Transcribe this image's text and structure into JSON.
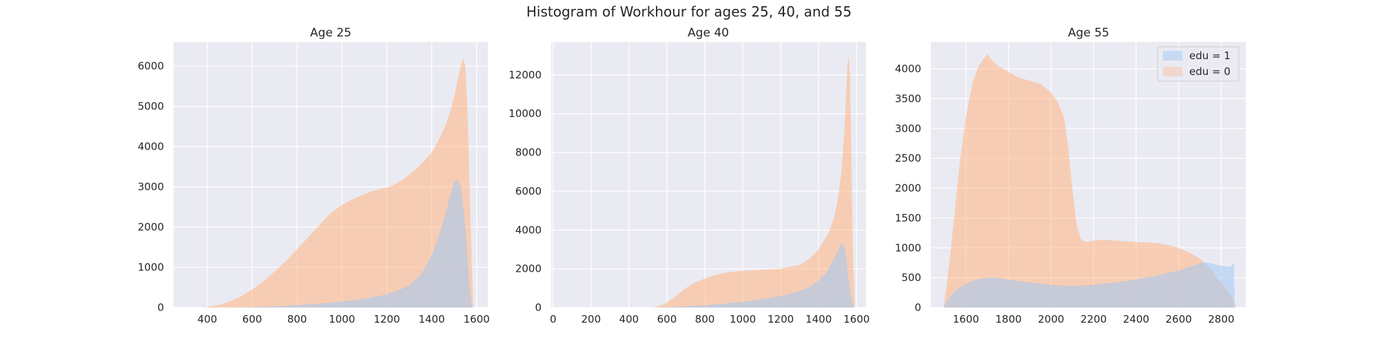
{
  "figure": {
    "title": "Histogram of Workhour for ages 25, 40, and 55"
  },
  "colors": {
    "edu1": "#a1c9f4",
    "edu0": "#ffb482",
    "panel_bg": "#eaeaf2",
    "grid": "#ffffff",
    "text": "#262626"
  },
  "chart_data": [
    {
      "type": "area",
      "title": "Age 25",
      "xlabel": "",
      "ylabel": "",
      "xlim": [
        250,
        1650
      ],
      "ylim": [
        0,
        6600
      ],
      "xticks": [
        400,
        600,
        800,
        1000,
        1200,
        1400,
        1600
      ],
      "yticks": [
        0,
        1000,
        2000,
        3000,
        4000,
        5000,
        6000
      ],
      "grid": true,
      "series": [
        {
          "key": "edu0",
          "x": [
            380,
            450,
            500,
            550,
            600,
            650,
            700,
            750,
            800,
            850,
            900,
            950,
            1000,
            1050,
            1100,
            1150,
            1200,
            1250,
            1300,
            1350,
            1400,
            1430,
            1460,
            1490,
            1510,
            1525,
            1540,
            1550,
            1560,
            1570,
            1580,
            1585
          ],
          "y": [
            0,
            60,
            150,
            280,
            450,
            650,
            900,
            1150,
            1450,
            1750,
            2050,
            2350,
            2550,
            2700,
            2820,
            2920,
            2980,
            3100,
            3300,
            3550,
            3850,
            4150,
            4500,
            5000,
            5500,
            5900,
            6200,
            6000,
            4800,
            2800,
            800,
            0
          ]
        },
        {
          "key": "edu1",
          "x": [
            500,
            600,
            700,
            800,
            900,
            1000,
            1100,
            1200,
            1250,
            1300,
            1350,
            1400,
            1430,
            1460,
            1480,
            1500,
            1515,
            1530,
            1545,
            1560,
            1570,
            1580
          ],
          "y": [
            0,
            10,
            30,
            60,
            100,
            150,
            220,
            330,
            420,
            550,
            800,
            1300,
            1750,
            2300,
            2750,
            3100,
            3200,
            3000,
            2300,
            1200,
            400,
            0
          ]
        }
      ]
    },
    {
      "type": "area",
      "title": "Age 40",
      "xlabel": "",
      "ylabel": "",
      "xlim": [
        -10,
        1650
      ],
      "ylim": [
        0,
        13700
      ],
      "xticks": [
        0,
        200,
        400,
        600,
        800,
        1000,
        1200,
        1400,
        1600
      ],
      "yticks": [
        0,
        2000,
        4000,
        6000,
        8000,
        10000,
        12000
      ],
      "grid": true,
      "series": [
        {
          "key": "edu0",
          "x": [
            530,
            580,
            620,
            660,
            700,
            750,
            800,
            850,
            900,
            950,
            1000,
            1100,
            1200,
            1300,
            1350,
            1400,
            1450,
            1480,
            1500,
            1520,
            1535,
            1545,
            1552,
            1558,
            1565,
            1572,
            1580,
            1590
          ],
          "y": [
            0,
            150,
            400,
            700,
            1000,
            1300,
            1500,
            1650,
            1780,
            1850,
            1900,
            1950,
            2000,
            2200,
            2500,
            3000,
            3800,
            4600,
            5500,
            7000,
            9000,
            11000,
            12500,
            13000,
            12000,
            8000,
            3000,
            0
          ]
        },
        {
          "key": "edu1",
          "x": [
            550,
            600,
            700,
            800,
            900,
            1000,
            1100,
            1200,
            1300,
            1350,
            1400,
            1440,
            1470,
            1500,
            1515,
            1525,
            1535,
            1545,
            1555,
            1565,
            1575,
            1585
          ],
          "y": [
            0,
            20,
            60,
            120,
            200,
            300,
            430,
            600,
            850,
            1050,
            1400,
            1800,
            2300,
            2900,
            3250,
            3300,
            3100,
            2600,
            1700,
            900,
            300,
            0
          ]
        }
      ]
    },
    {
      "type": "area",
      "title": "Age 55",
      "xlabel": "",
      "ylabel": "",
      "xlim": [
        1435,
        2915
      ],
      "ylim": [
        0,
        4450
      ],
      "xticks": [
        1600,
        1800,
        2000,
        2200,
        2400,
        2600,
        2800
      ],
      "yticks": [
        0,
        500,
        1000,
        1500,
        2000,
        2500,
        3000,
        3500,
        4000
      ],
      "grid": true,
      "legend": {
        "position": "top-right",
        "entries": [
          {
            "key": "edu1",
            "label": "edu = 1"
          },
          {
            "key": "edu0",
            "label": "edu = 0"
          }
        ]
      },
      "series": [
        {
          "key": "edu0",
          "x": [
            1495,
            1510,
            1530,
            1550,
            1570,
            1600,
            1630,
            1660,
            1690,
            1700,
            1720,
            1750,
            1800,
            1850,
            1900,
            1950,
            2000,
            2030,
            2060,
            2080,
            2100,
            2120,
            2140,
            2160,
            2200,
            2250,
            2300,
            2400,
            2500,
            2560,
            2600,
            2650,
            2700,
            2750,
            2800,
            2850,
            2870
          ],
          "y": [
            0,
            400,
            1000,
            1700,
            2400,
            3200,
            3750,
            4050,
            4200,
            4250,
            4150,
            4050,
            3950,
            3850,
            3800,
            3750,
            3600,
            3450,
            3200,
            2700,
            2000,
            1400,
            1150,
            1100,
            1120,
            1140,
            1120,
            1100,
            1080,
            1040,
            1000,
            920,
            820,
            640,
            420,
            180,
            0
          ]
        },
        {
          "key": "edu1",
          "x": [
            1495,
            1520,
            1550,
            1600,
            1650,
            1700,
            1750,
            1800,
            1900,
            2000,
            2100,
            2200,
            2300,
            2400,
            2500,
            2600,
            2650,
            2700,
            2720,
            2750,
            2800,
            2840,
            2855,
            2860,
            2863
          ],
          "y": [
            0,
            150,
            280,
            400,
            470,
            500,
            500,
            470,
            420,
            380,
            360,
            380,
            420,
            470,
            540,
            620,
            680,
            740,
            760,
            740,
            700,
            680,
            720,
            780,
            0
          ]
        }
      ]
    }
  ]
}
